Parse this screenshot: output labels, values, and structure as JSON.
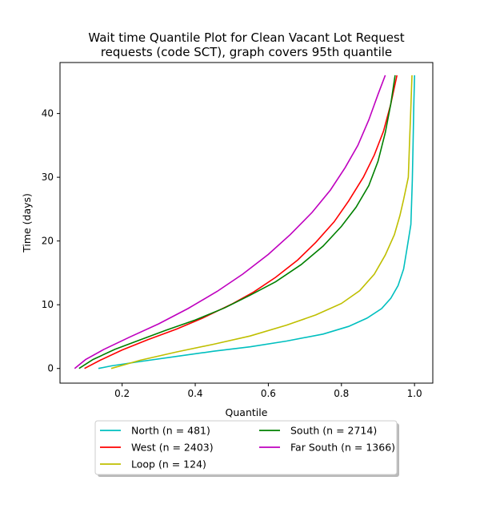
{
  "chart_data": {
    "type": "line",
    "title_line1": "Wait time Quantile Plot for Clean Vacant Lot Request",
    "title_line2": "requests (code SCT), graph covers 95th quantile",
    "xlabel": "Quantile",
    "ylabel": "Time (days)",
    "xlim": [
      0.03,
      1.05
    ],
    "ylim": [
      -2.3,
      48.0
    ],
    "xticks": [
      0.2,
      0.4,
      0.6,
      0.8,
      1.0
    ],
    "xtick_labels": [
      "0.2",
      "0.4",
      "0.6",
      "0.8",
      "1.0"
    ],
    "yticks": [
      0,
      10,
      20,
      30,
      40
    ],
    "ytick_labels": [
      "0",
      "10",
      "20",
      "30",
      "40"
    ],
    "grid": false,
    "legend_position": "below plot, two columns",
    "series": [
      {
        "name": "North (n = 481)",
        "color": "#00bfbf",
        "points": [
          [
            0.135,
            0
          ],
          [
            0.17,
            0.4
          ],
          [
            0.25,
            1.1
          ],
          [
            0.35,
            1.9
          ],
          [
            0.45,
            2.7
          ],
          [
            0.55,
            3.4
          ],
          [
            0.65,
            4.3
          ],
          [
            0.75,
            5.4
          ],
          [
            0.82,
            6.6
          ],
          [
            0.87,
            7.9
          ],
          [
            0.91,
            9.4
          ],
          [
            0.935,
            11.0
          ],
          [
            0.955,
            13.0
          ],
          [
            0.97,
            15.6
          ],
          [
            0.98,
            19.0
          ],
          [
            0.99,
            22.6
          ],
          [
            0.992,
            26.0
          ],
          [
            0.994,
            29.5
          ],
          [
            0.996,
            35.0
          ],
          [
            0.998,
            41.0
          ],
          [
            1.0,
            46.0
          ]
        ]
      },
      {
        "name": "West (n = 2403)",
        "color": "#ff0000",
        "points": [
          [
            0.097,
            0
          ],
          [
            0.14,
            1.3
          ],
          [
            0.2,
            2.9
          ],
          [
            0.27,
            4.5
          ],
          [
            0.35,
            6.2
          ],
          [
            0.42,
            7.9
          ],
          [
            0.5,
            10.1
          ],
          [
            0.56,
            12.0
          ],
          [
            0.62,
            14.3
          ],
          [
            0.68,
            17.0
          ],
          [
            0.73,
            19.8
          ],
          [
            0.78,
            23.0
          ],
          [
            0.82,
            26.3
          ],
          [
            0.86,
            30.0
          ],
          [
            0.89,
            33.5
          ],
          [
            0.915,
            37.2
          ],
          [
            0.935,
            41.5
          ],
          [
            0.952,
            46.0
          ]
        ]
      },
      {
        "name": "Loop (n = 124)",
        "color": "#bfbf00",
        "points": [
          [
            0.17,
            0
          ],
          [
            0.25,
            1.3
          ],
          [
            0.35,
            2.6
          ],
          [
            0.45,
            3.8
          ],
          [
            0.55,
            5.1
          ],
          [
            0.65,
            6.8
          ],
          [
            0.73,
            8.4
          ],
          [
            0.8,
            10.2
          ],
          [
            0.85,
            12.2
          ],
          [
            0.89,
            14.8
          ],
          [
            0.92,
            17.8
          ],
          [
            0.945,
            21.0
          ],
          [
            0.96,
            24.0
          ],
          [
            0.97,
            26.5
          ],
          [
            0.983,
            30.0
          ],
          [
            0.986,
            35.0
          ],
          [
            0.99,
            41.0
          ],
          [
            0.993,
            46.0
          ]
        ]
      },
      {
        "name": "South (n = 2714)",
        "color": "#008000",
        "points": [
          [
            0.082,
            0
          ],
          [
            0.12,
            1.4
          ],
          [
            0.18,
            3.0
          ],
          [
            0.25,
            4.5
          ],
          [
            0.32,
            6.0
          ],
          [
            0.4,
            7.6
          ],
          [
            0.48,
            9.5
          ],
          [
            0.55,
            11.5
          ],
          [
            0.62,
            13.6
          ],
          [
            0.69,
            16.3
          ],
          [
            0.75,
            19.2
          ],
          [
            0.8,
            22.3
          ],
          [
            0.84,
            25.3
          ],
          [
            0.875,
            28.7
          ],
          [
            0.9,
            32.5
          ],
          [
            0.92,
            37.0
          ],
          [
            0.935,
            41.5
          ],
          [
            0.947,
            46.0
          ]
        ]
      },
      {
        "name": "Far South (n = 1366)",
        "color": "#bf00bf",
        "points": [
          [
            0.07,
            0
          ],
          [
            0.1,
            1.4
          ],
          [
            0.15,
            3.0
          ],
          [
            0.22,
            4.9
          ],
          [
            0.3,
            7.0
          ],
          [
            0.38,
            9.4
          ],
          [
            0.46,
            12.1
          ],
          [
            0.53,
            14.8
          ],
          [
            0.6,
            17.9
          ],
          [
            0.66,
            21.0
          ],
          [
            0.72,
            24.5
          ],
          [
            0.77,
            28.0
          ],
          [
            0.81,
            31.5
          ],
          [
            0.845,
            35.0
          ],
          [
            0.875,
            39.0
          ],
          [
            0.9,
            43.0
          ],
          [
            0.92,
            46.0
          ]
        ]
      }
    ]
  }
}
